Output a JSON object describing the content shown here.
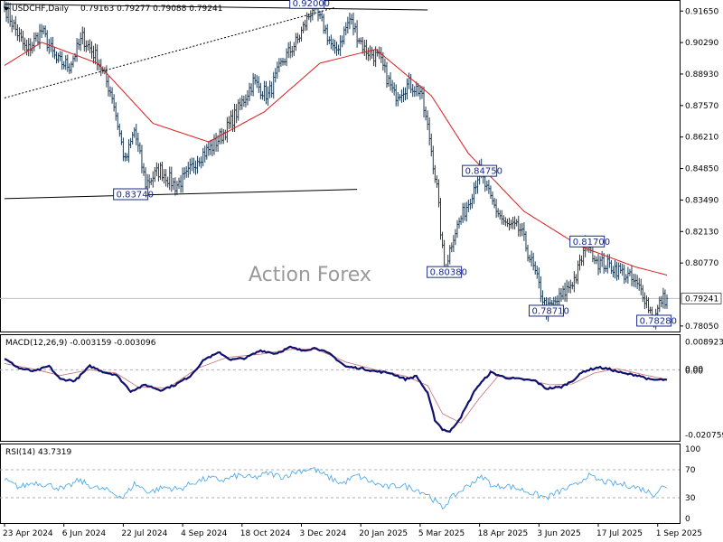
{
  "header": {
    "symbol": "USDCHF,Daily",
    "ohlc": "0.79163 0.79277 0.79088 0.79241"
  },
  "watermark": "Action Forex",
  "current_price_label": "0.79241",
  "chart_data": [
    {
      "type": "line",
      "name": "price",
      "title": "USDCHF,Daily",
      "subtitle": "0.79163 0.79277 0.79088 0.79241",
      "bar_style": "ohlc-bars",
      "moving_average_color": "#d91c1c",
      "bar_color": "#1e3a52",
      "ylim": [
        0.7785,
        0.9205
      ],
      "y_ticks": [
        "0.91650",
        "0.90290",
        "0.88930",
        "0.87570",
        "0.86210",
        "0.84850",
        "0.83490",
        "0.82130",
        "0.80770",
        "0.79241",
        "0.78050"
      ],
      "x_ticks": [
        "23 Apr 2024",
        "6 Jun 2024",
        "22 Jul 2024",
        "4 Sep 2024",
        "18 Oct 2024",
        "3 Dec 2024",
        "20 Jan 2025",
        "5 Mar 2025",
        "18 Apr 2025",
        "3 Jun 2025",
        "17 Jul 2025",
        "1 Sep 2025"
      ],
      "close_anchors": [
        [
          0,
          0.9185
        ],
        [
          5,
          0.91
        ],
        [
          12,
          0.899
        ],
        [
          20,
          0.908
        ],
        [
          28,
          0.895
        ],
        [
          35,
          0.893
        ],
        [
          42,
          0.905
        ],
        [
          50,
          0.896
        ],
        [
          58,
          0.88
        ],
        [
          65,
          0.851
        ],
        [
          70,
          0.865
        ],
        [
          76,
          0.842
        ],
        [
          84,
          0.848
        ],
        [
          92,
          0.841
        ],
        [
          98,
          0.845
        ],
        [
          104,
          0.853
        ],
        [
          112,
          0.858
        ],
        [
          120,
          0.866
        ],
        [
          126,
          0.874
        ],
        [
          134,
          0.886
        ],
        [
          142,
          0.88
        ],
        [
          150,
          0.895
        ],
        [
          158,
          0.904
        ],
        [
          166,
          0.918
        ],
        [
          172,
          0.91
        ],
        [
          178,
          0.898
        ],
        [
          186,
          0.913
        ],
        [
          194,
          0.9
        ],
        [
          202,
          0.896
        ],
        [
          210,
          0.88
        ],
        [
          218,
          0.885
        ],
        [
          224,
          0.882
        ],
        [
          229,
          0.862
        ],
        [
          233,
          0.84
        ],
        [
          237,
          0.8038
        ],
        [
          242,
          0.82
        ],
        [
          250,
          0.834
        ],
        [
          256,
          0.8475
        ],
        [
          262,
          0.835
        ],
        [
          270,
          0.824
        ],
        [
          278,
          0.822
        ],
        [
          286,
          0.803
        ],
        [
          292,
          0.7871
        ],
        [
          300,
          0.793
        ],
        [
          308,
          0.802
        ],
        [
          314,
          0.817
        ],
        [
          320,
          0.808
        ],
        [
          328,
          0.806
        ],
        [
          336,
          0.802
        ],
        [
          344,
          0.795
        ],
        [
          350,
          0.7828
        ],
        [
          354,
          0.792
        ],
        [
          357,
          0.79241
        ]
      ],
      "ma_anchors": [
        [
          0,
          0.893
        ],
        [
          20,
          0.903
        ],
        [
          50,
          0.894
        ],
        [
          80,
          0.868
        ],
        [
          110,
          0.86
        ],
        [
          140,
          0.873
        ],
        [
          170,
          0.894
        ],
        [
          200,
          0.9
        ],
        [
          230,
          0.88
        ],
        [
          250,
          0.855
        ],
        [
          280,
          0.83
        ],
        [
          310,
          0.815
        ],
        [
          340,
          0.806
        ],
        [
          357,
          0.8025
        ]
      ],
      "levels": [
        {
          "label": "0.92000",
          "value": 0.92,
          "bar": 163
        },
        {
          "label": "0.83740",
          "value": 0.8374,
          "bar": 68
        },
        {
          "label": "0.84750",
          "value": 0.8475,
          "bar": 256
        },
        {
          "label": "0.80380",
          "value": 0.8038,
          "bar": 237
        },
        {
          "label": "0.81700",
          "value": 0.817,
          "bar": 314
        },
        {
          "label": "0.78710",
          "value": 0.7871,
          "bar": 292
        },
        {
          "label": "0.78280",
          "value": 0.7828,
          "bar": 350
        }
      ],
      "trend_lines": [
        {
          "style": "solid",
          "from": [
            0,
            0.9195
          ],
          "to": [
            228,
            0.917
          ]
        },
        {
          "style": "solid",
          "from": [
            0,
            0.8355
          ],
          "to": [
            190,
            0.8395
          ]
        },
        {
          "style": "dashed",
          "from": [
            0,
            0.879
          ],
          "to": [
            178,
            0.918
          ]
        }
      ],
      "n_bars": 358
    },
    {
      "type": "line",
      "name": "macd",
      "title": "MACD(12,26,9) -0.003159 -0.003096",
      "ylim": [
        -0.0224,
        0.0108
      ],
      "y_ticks": [
        "0.008923",
        "0.00",
        "0.00",
        "-0.020759"
      ],
      "macd_color": "#10106e",
      "signal_color": "#c87070",
      "macd_anchors": [
        [
          0,
          0.0035
        ],
        [
          8,
          0.0005
        ],
        [
          16,
          -0.0005
        ],
        [
          24,
          0.0012
        ],
        [
          30,
          -0.003
        ],
        [
          38,
          -0.0035
        ],
        [
          46,
          0.0012
        ],
        [
          54,
          -0.0008
        ],
        [
          60,
          -0.0015
        ],
        [
          68,
          -0.0068
        ],
        [
          76,
          -0.0048
        ],
        [
          84,
          -0.0065
        ],
        [
          92,
          -0.0048
        ],
        [
          100,
          -0.002
        ],
        [
          108,
          0.0035
        ],
        [
          116,
          0.0055
        ],
        [
          122,
          0.0032
        ],
        [
          130,
          0.0038
        ],
        [
          138,
          0.0062
        ],
        [
          146,
          0.0052
        ],
        [
          154,
          0.0072
        ],
        [
          160,
          0.0062
        ],
        [
          168,
          0.007
        ],
        [
          176,
          0.0048
        ],
        [
          184,
          0.001
        ],
        [
          192,
          0.0005
        ],
        [
          200,
          -0.0005
        ],
        [
          208,
          -0.001
        ],
        [
          216,
          -0.003
        ],
        [
          222,
          -0.002
        ],
        [
          228,
          -0.0075
        ],
        [
          232,
          -0.016
        ],
        [
          236,
          -0.019
        ],
        [
          240,
          -0.0198
        ],
        [
          246,
          -0.015
        ],
        [
          254,
          -0.006
        ],
        [
          262,
          -0.0008
        ],
        [
          270,
          -0.0025
        ],
        [
          278,
          -0.003
        ],
        [
          286,
          -0.0035
        ],
        [
          292,
          -0.006
        ],
        [
          300,
          -0.0055
        ],
        [
          306,
          -0.0035
        ],
        [
          312,
          -0.0005
        ],
        [
          320,
          0.0008
        ],
        [
          326,
          0.0002
        ],
        [
          334,
          -0.0012
        ],
        [
          342,
          -0.0018
        ],
        [
          348,
          -0.0032
        ],
        [
          357,
          -0.003159
        ]
      ],
      "signal_anchors": [
        [
          0,
          0.002
        ],
        [
          16,
          0.0002
        ],
        [
          30,
          -0.0018
        ],
        [
          46,
          0.0
        ],
        [
          60,
          -0.001
        ],
        [
          72,
          -0.0055
        ],
        [
          88,
          -0.0058
        ],
        [
          104,
          0.0005
        ],
        [
          120,
          0.004
        ],
        [
          138,
          0.005
        ],
        [
          154,
          0.0065
        ],
        [
          168,
          0.0066
        ],
        [
          184,
          0.0025
        ],
        [
          200,
          0.0
        ],
        [
          216,
          -0.002
        ],
        [
          228,
          -0.005
        ],
        [
          236,
          -0.014
        ],
        [
          246,
          -0.017
        ],
        [
          256,
          -0.009
        ],
        [
          266,
          -0.002
        ],
        [
          280,
          -0.0028
        ],
        [
          294,
          -0.0048
        ],
        [
          306,
          -0.0045
        ],
        [
          318,
          -0.001
        ],
        [
          330,
          0.0004
        ],
        [
          344,
          -0.0015
        ],
        [
          357,
          -0.003096
        ]
      ],
      "n_bars": 358
    },
    {
      "type": "line",
      "name": "rsi",
      "title": "RSI(14) 43.7319",
      "ylim": [
        -5,
        105
      ],
      "y_ticks": [
        "100",
        "70",
        "30",
        "0"
      ],
      "guide_levels": [
        70,
        30
      ],
      "line_color": "#3fa3e8",
      "rsi_anchors": [
        [
          0,
          55
        ],
        [
          8,
          45
        ],
        [
          16,
          52
        ],
        [
          24,
          48
        ],
        [
          32,
          42
        ],
        [
          40,
          55
        ],
        [
          48,
          45
        ],
        [
          56,
          40
        ],
        [
          64,
          30
        ],
        [
          70,
          50
        ],
        [
          78,
          38
        ],
        [
          86,
          45
        ],
        [
          94,
          42
        ],
        [
          102,
          52
        ],
        [
          110,
          58
        ],
        [
          118,
          55
        ],
        [
          126,
          62
        ],
        [
          134,
          58
        ],
        [
          142,
          65
        ],
        [
          150,
          60
        ],
        [
          158,
          68
        ],
        [
          166,
          72
        ],
        [
          174,
          60
        ],
        [
          182,
          50
        ],
        [
          190,
          62
        ],
        [
          198,
          52
        ],
        [
          206,
          45
        ],
        [
          214,
          48
        ],
        [
          222,
          42
        ],
        [
          228,
          35
        ],
        [
          232,
          25
        ],
        [
          236,
          15
        ],
        [
          240,
          28
        ],
        [
          246,
          40
        ],
        [
          252,
          52
        ],
        [
          258,
          60
        ],
        [
          264,
          45
        ],
        [
          270,
          48
        ],
        [
          278,
          42
        ],
        [
          286,
          35
        ],
        [
          292,
          30
        ],
        [
          300,
          40
        ],
        [
          308,
          48
        ],
        [
          314,
          62
        ],
        [
          320,
          55
        ],
        [
          328,
          50
        ],
        [
          336,
          48
        ],
        [
          344,
          42
        ],
        [
          350,
          35
        ],
        [
          354,
          45
        ],
        [
          357,
          43.7319
        ]
      ],
      "n_bars": 358
    }
  ]
}
